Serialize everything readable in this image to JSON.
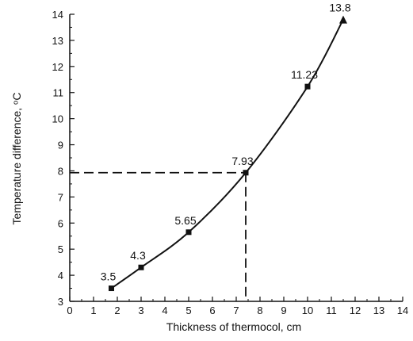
{
  "chart_data": {
    "type": "line",
    "xlabel": "Thickness of thermocol, cm",
    "ylabel": "Temperature   difference, ᵒC",
    "xlim": [
      0,
      14
    ],
    "ylim": [
      3,
      14
    ],
    "xticks": [
      "0",
      "1",
      "2",
      "3",
      "4",
      "5",
      "6",
      "7",
      "8",
      "9",
      "10",
      "11",
      "12",
      "13",
      "14"
    ],
    "yticks": [
      "3",
      "4",
      "5",
      "6",
      "7",
      "8",
      "9",
      "10",
      "11",
      "12",
      "13",
      "14"
    ],
    "grid": false,
    "series": [
      {
        "x": [
          1.75,
          3,
          5,
          7.4,
          10,
          11.5
        ],
        "y": [
          3.5,
          4.3,
          5.65,
          7.93,
          11.23,
          13.8
        ],
        "point_labels": [
          "3.5",
          "4.3",
          "5.65",
          "7.93",
          "11.23",
          "13.8"
        ],
        "markers": [
          "square",
          "square",
          "square",
          "square",
          "square",
          "triangle"
        ]
      }
    ],
    "reference_point": {
      "x": 7.4,
      "y": 7.93
    },
    "colors": {
      "line": "#111111",
      "axis": "#111111"
    }
  }
}
